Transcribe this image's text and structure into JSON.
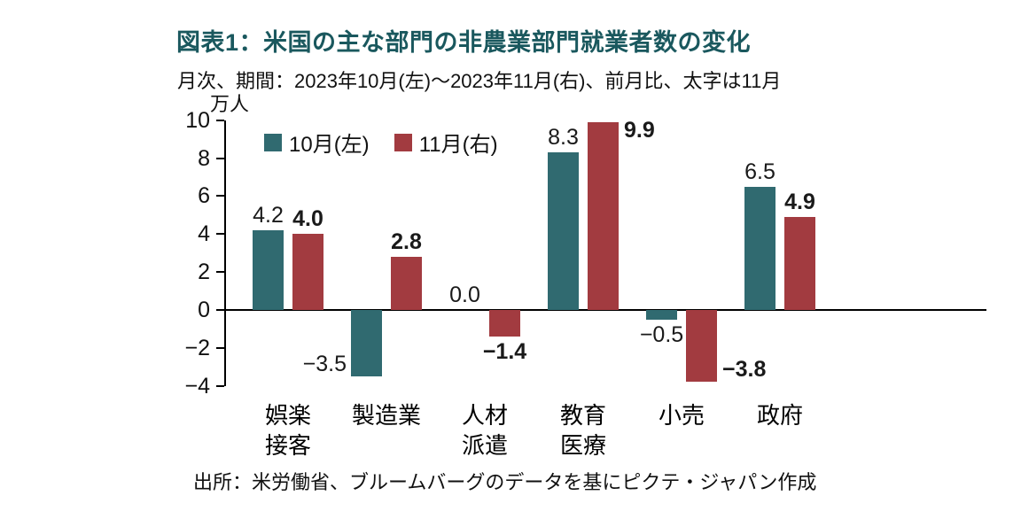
{
  "page": {
    "title": "図表1：米国の主な部門の非農業部門就業者数の変化",
    "subtitle": "月次、期間：2023年10月(左)～2023年11月(右)、前月比、太字は11月",
    "unit_label": "万人",
    "source": "出所：米労働省、ブルームバーグのデータを基にピクテ・ジャパン作成"
  },
  "colors": {
    "title": "#1A585E",
    "october": "#306A70",
    "november": "#A23B40",
    "axis": "#000000",
    "text": "#1A1A1A"
  },
  "chart_data": {
    "type": "bar",
    "title": "図表1：米国の主な部門の非農業部門就業者数の変化",
    "subtitle": "月次、期間：2023年10月(左)～2023年11月(右)、前月比、太字は11月",
    "ylabel": "万人",
    "xlabel": "",
    "ylim": [
      -4,
      10
    ],
    "yticks": [
      -4,
      -2,
      0,
      2,
      4,
      6,
      8,
      10
    ],
    "grid": false,
    "legend_position": "top-left-inside",
    "categories": [
      "娯楽\n接客",
      "製造業",
      "人材\n派遣",
      "教育\n医療",
      "小売",
      "政府"
    ],
    "series": [
      {
        "name": "10月(左)",
        "color": "#306A70",
        "bold_labels": false,
        "values": [
          4.2,
          -3.5,
          0.0,
          8.3,
          -0.5,
          6.5
        ]
      },
      {
        "name": "11月(右)",
        "color": "#A23B40",
        "bold_labels": true,
        "values": [
          4.0,
          2.8,
          -1.4,
          9.9,
          -3.8,
          4.9
        ]
      }
    ],
    "source": "出所：米労働省、ブルームバーグのデータを基にピクテ・ジャパン作成"
  }
}
